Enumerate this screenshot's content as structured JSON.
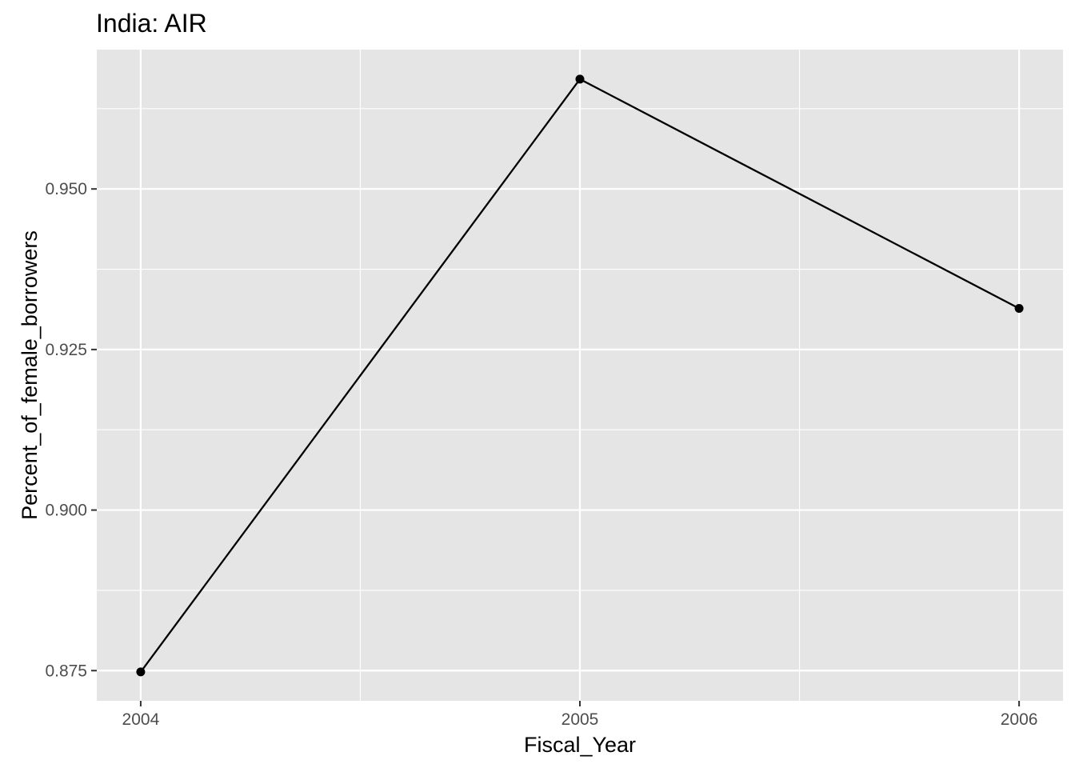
{
  "chart_data": {
    "type": "line",
    "title": "India:  AIR",
    "xlabel": "Fiscal_Year",
    "ylabel": "Percent_of_female_borrowers",
    "x": [
      2004,
      2005,
      2006
    ],
    "series": [
      {
        "values": [
          0.8748,
          0.9671,
          0.9314
        ]
      }
    ],
    "xlim": [
      2003.9,
      2006.1
    ],
    "ylim": [
      0.8703,
      0.9717
    ],
    "x_ticks": [
      2004,
      2005,
      2006
    ],
    "x_tick_labels": [
      "2004",
      "2005",
      "2006"
    ],
    "x_minor_ticks": [
      2004.5,
      2005.5
    ],
    "y_ticks": [
      0.875,
      0.9,
      0.925,
      0.95
    ],
    "y_tick_labels": [
      "0.875",
      "0.900",
      "0.925",
      "0.950"
    ],
    "y_minor_ticks": [
      0.8875,
      0.9125,
      0.9375,
      0.9625
    ],
    "grid": true,
    "legend": "none",
    "colors": {
      "panel_background": "#e5e5e5",
      "grid_line": "#ffffff",
      "series_line": "#000000",
      "point": "#000000",
      "tick_mark": "#333333",
      "tick_label": "#4d4d4d"
    }
  }
}
